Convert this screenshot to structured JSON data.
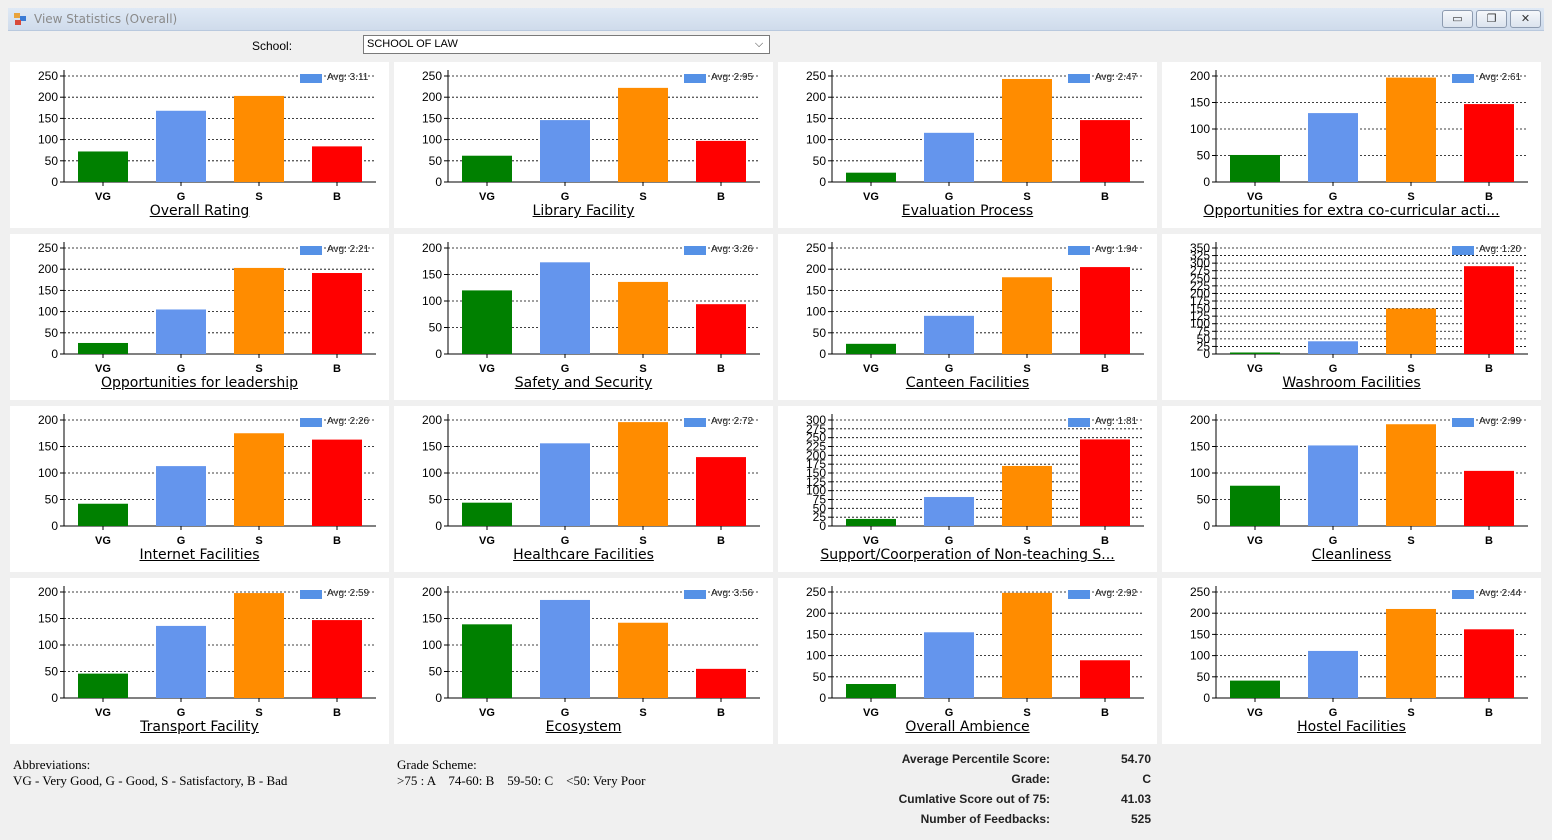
{
  "window": {
    "title": "View Statistics (Overall)",
    "minimize_glyph": "▭",
    "restore_glyph": "❐",
    "close_glyph": "✕"
  },
  "school": {
    "label": "School:",
    "value": "SCHOOL OF LAW",
    "chevron": "⌵"
  },
  "colors": {
    "VG": "#008000",
    "G": "#6495ed",
    "S": "#ff8c00",
    "B": "#ff0000",
    "avg_legend": "#5591e6"
  },
  "chart_data": [
    {
      "type": "bar",
      "title": "Overall Rating",
      "categories": [
        "VG",
        "G",
        "S",
        "B"
      ],
      "values": [
        72,
        168,
        203,
        84
      ],
      "ylim": [
        0,
        250
      ],
      "ticks": [
        0,
        50,
        100,
        150,
        200,
        250
      ],
      "legend": "Avg: 3.11"
    },
    {
      "type": "bar",
      "title": "Library Facility",
      "categories": [
        "VG",
        "G",
        "S",
        "B"
      ],
      "values": [
        62,
        146,
        222,
        97
      ],
      "ylim": [
        0,
        250
      ],
      "ticks": [
        0,
        50,
        100,
        150,
        200,
        250
      ],
      "legend": "Avg: 2.95"
    },
    {
      "type": "bar",
      "title": "Evaluation Process",
      "categories": [
        "VG",
        "G",
        "S",
        "B"
      ],
      "values": [
        22,
        116,
        243,
        146
      ],
      "ylim": [
        0,
        250
      ],
      "ticks": [
        0,
        50,
        100,
        150,
        200,
        250
      ],
      "legend": "Avg: 2.47"
    },
    {
      "type": "bar",
      "title": "Opportunities for extra co-curricular acti...",
      "categories": [
        "VG",
        "G",
        "S",
        "B"
      ],
      "values": [
        51,
        130,
        197,
        147
      ],
      "ylim": [
        0,
        200
      ],
      "ticks": [
        0,
        50,
        100,
        150,
        200
      ],
      "legend": "Avg: 2.61"
    },
    {
      "type": "bar",
      "title": "Opportunities for leadership",
      "categories": [
        "VG",
        "G",
        "S",
        "B"
      ],
      "values": [
        26,
        105,
        203,
        191
      ],
      "ylim": [
        0,
        250
      ],
      "ticks": [
        0,
        50,
        100,
        150,
        200,
        250
      ],
      "legend": "Avg: 2.21"
    },
    {
      "type": "bar",
      "title": "Safety and Security",
      "categories": [
        "VG",
        "G",
        "S",
        "B"
      ],
      "values": [
        120,
        173,
        136,
        94
      ],
      "ylim": [
        0,
        200
      ],
      "ticks": [
        0,
        50,
        100,
        150,
        200
      ],
      "legend": "Avg: 3.26"
    },
    {
      "type": "bar",
      "title": "Canteen Facilities",
      "categories": [
        "VG",
        "G",
        "S",
        "B"
      ],
      "values": [
        24,
        90,
        181,
        205
      ],
      "ylim": [
        0,
        250
      ],
      "ticks": [
        0,
        50,
        100,
        150,
        200,
        250
      ],
      "legend": "Avg: 1.94"
    },
    {
      "type": "bar",
      "title": "Washroom Facilities",
      "categories": [
        "VG",
        "G",
        "S",
        "B"
      ],
      "values": [
        5,
        42,
        150,
        290
      ],
      "ylim": [
        0,
        350
      ],
      "ticks": [
        0,
        25,
        50,
        75,
        100,
        125,
        150,
        175,
        200,
        225,
        250,
        275,
        300,
        325,
        350
      ],
      "tick_labels": [
        "0",
        "25",
        "50",
        "75",
        "100",
        "125",
        "150",
        "175",
        "200",
        "225",
        "250",
        "275",
        "300",
        "325",
        "350"
      ],
      "legend": "Avg: 1.20"
    },
    {
      "type": "bar",
      "title": "Internet Facilities",
      "categories": [
        "VG",
        "G",
        "S",
        "B"
      ],
      "values": [
        42,
        113,
        175,
        163
      ],
      "ylim": [
        0,
        200
      ],
      "ticks": [
        0,
        50,
        100,
        150,
        200
      ],
      "legend": "Avg: 2.26"
    },
    {
      "type": "bar",
      "title": "Healthcare Facilities",
      "categories": [
        "VG",
        "G",
        "S",
        "B"
      ],
      "values": [
        44,
        156,
        196,
        130
      ],
      "ylim": [
        0,
        200
      ],
      "ticks": [
        0,
        50,
        100,
        150,
        200
      ],
      "legend": "Avg: 2.72"
    },
    {
      "type": "bar",
      "title": "Support/Coorperation of Non-teaching S...",
      "categories": [
        "VG",
        "G",
        "S",
        "B"
      ],
      "values": [
        20,
        82,
        170,
        245
      ],
      "ylim": [
        0,
        300
      ],
      "ticks": [
        0,
        25,
        50,
        75,
        100,
        125,
        150,
        175,
        200,
        225,
        250,
        275,
        300
      ],
      "tick_labels": [
        "0",
        "25",
        "50",
        "75",
        "100",
        "125",
        "150",
        "175",
        "200",
        "225",
        "250",
        "275",
        "300"
      ],
      "legend": "Avg: 1.81"
    },
    {
      "type": "bar",
      "title": "Cleanliness",
      "categories": [
        "VG",
        "G",
        "S",
        "B"
      ],
      "values": [
        76,
        152,
        192,
        104
      ],
      "ylim": [
        0,
        200
      ],
      "ticks": [
        0,
        50,
        100,
        150,
        200
      ],
      "legend": "Avg: 2.99"
    },
    {
      "type": "bar",
      "title": "Transport Facility",
      "categories": [
        "VG",
        "G",
        "S",
        "B"
      ],
      "values": [
        46,
        136,
        198,
        147
      ],
      "ylim": [
        0,
        200
      ],
      "ticks": [
        0,
        50,
        100,
        150,
        200
      ],
      "legend": "Avg: 2.59"
    },
    {
      "type": "bar",
      "title": "Ecosystem",
      "categories": [
        "VG",
        "G",
        "S",
        "B"
      ],
      "values": [
        139,
        185,
        142,
        55
      ],
      "ylim": [
        0,
        200
      ],
      "ticks": [
        0,
        50,
        100,
        150,
        200
      ],
      "legend": "Avg: 3.56"
    },
    {
      "type": "bar",
      "title": "Overall Ambience",
      "categories": [
        "VG",
        "G",
        "S",
        "B"
      ],
      "values": [
        33,
        155,
        248,
        89
      ],
      "ylim": [
        0,
        250
      ],
      "ticks": [
        0,
        50,
        100,
        150,
        200,
        250
      ],
      "legend": "Avg: 2.92"
    },
    {
      "type": "bar",
      "title": "Hostel Facilities",
      "categories": [
        "VG",
        "G",
        "S",
        "B"
      ],
      "values": [
        41,
        111,
        210,
        162
      ],
      "ylim": [
        0,
        250
      ],
      "ticks": [
        0,
        50,
        100,
        150,
        200,
        250
      ],
      "legend": "Avg: 2.44"
    }
  ],
  "abbreviations": {
    "heading": "Abbreviations:",
    "text": "VG - Very Good, G - Good, S - Satisfactory, B - Bad"
  },
  "grade_scheme": {
    "heading": "Grade Scheme:",
    "text": ">75 : A    74-60: B    59-50: C    <50: Very Poor"
  },
  "summary": {
    "avg_percentile_label": "Average Percentile Score:",
    "avg_percentile_value": "54.70",
    "grade_label": "Grade:",
    "grade_value": "C",
    "cumulative_label": "Cumlative Score out of 75:",
    "cumulative_value": "41.03",
    "feedbacks_label": "Number of Feedbacks:",
    "feedbacks_value": "525"
  }
}
